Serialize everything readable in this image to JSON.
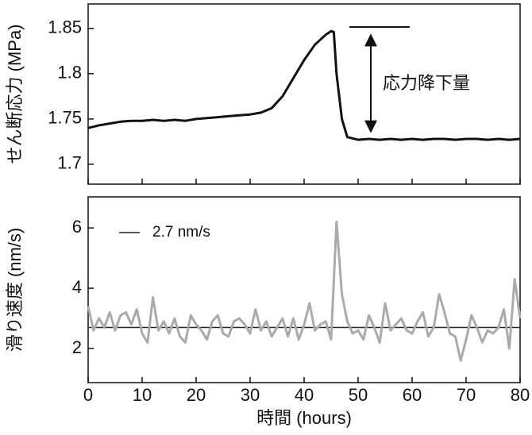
{
  "chart_data": [
    {
      "type": "line",
      "ylabel": "せん断応力 (MPa)",
      "annotation": "応力降下量",
      "xlim": [
        0,
        80
      ],
      "xticks": [
        0,
        10,
        20,
        30,
        40,
        50,
        60,
        70,
        80
      ],
      "ylim": [
        1.678,
        1.877
      ],
      "yticks": [
        1.7,
        1.75,
        1.8,
        1.85
      ],
      "x": [
        0,
        2,
        4,
        6,
        8,
        10,
        12,
        14,
        16,
        18,
        20,
        22,
        24,
        26,
        28,
        30,
        32,
        34,
        36,
        38,
        40,
        42,
        44,
        45,
        45.5,
        46,
        47,
        48,
        50,
        52,
        54,
        56,
        58,
        60,
        62,
        64,
        66,
        68,
        70,
        72,
        74,
        76,
        78,
        80
      ],
      "series": [
        {
          "color": "#111111",
          "values": [
            1.74,
            1.743,
            1.745,
            1.747,
            1.748,
            1.748,
            1.749,
            1.748,
            1.749,
            1.748,
            1.75,
            1.751,
            1.752,
            1.753,
            1.754,
            1.755,
            1.757,
            1.762,
            1.775,
            1.795,
            1.815,
            1.832,
            1.843,
            1.847,
            1.846,
            1.8,
            1.75,
            1.73,
            1.727,
            1.728,
            1.727,
            1.728,
            1.727,
            1.728,
            1.727,
            1.728,
            1.728,
            1.727,
            1.728,
            1.728,
            1.727,
            1.728,
            1.727,
            1.728
          ]
        }
      ]
    },
    {
      "type": "line",
      "ylabel": "滑り速度 (nm/s)",
      "xlabel": "時間 (hours)",
      "xlim": [
        0,
        80
      ],
      "xticks": [
        0,
        10,
        20,
        30,
        40,
        50,
        60,
        70,
        80
      ],
      "ylim": [
        0.87,
        7.03
      ],
      "yticks": [
        2,
        4,
        6
      ],
      "reference_line": {
        "value": 2.7,
        "label": "2.7 nm/s",
        "color": "#222222"
      },
      "x": [
        0,
        1,
        2,
        3,
        4,
        5,
        6,
        7,
        8,
        9,
        10,
        11,
        12,
        13,
        14,
        15,
        16,
        17,
        18,
        19,
        20,
        21,
        22,
        23,
        24,
        25,
        26,
        27,
        28,
        29,
        30,
        31,
        32,
        33,
        34,
        35,
        36,
        37,
        38,
        39,
        40,
        41,
        42,
        43,
        44,
        45,
        46,
        47,
        48,
        49,
        50,
        51,
        52,
        53,
        54,
        55,
        56,
        57,
        58,
        59,
        60,
        61,
        62,
        63,
        64,
        65,
        66,
        67,
        68,
        69,
        70,
        71,
        72,
        73,
        74,
        75,
        76,
        77,
        78,
        79,
        80
      ],
      "series": [
        {
          "color": "#aaaaaa",
          "values": [
            3.4,
            2.6,
            3.0,
            2.7,
            3.2,
            2.6,
            3.1,
            3.2,
            2.8,
            3.3,
            2.5,
            2.2,
            3.7,
            2.6,
            2.9,
            2.5,
            3.0,
            2.4,
            2.2,
            3.1,
            2.8,
            2.6,
            2.3,
            2.9,
            3.1,
            2.5,
            2.4,
            2.9,
            3.0,
            2.8,
            2.5,
            3.3,
            2.6,
            2.9,
            2.4,
            2.7,
            3.0,
            2.4,
            3.0,
            2.3,
            2.8,
            3.5,
            2.6,
            2.8,
            2.9,
            2.3,
            6.2,
            3.8,
            2.9,
            2.5,
            2.6,
            2.3,
            3.1,
            2.7,
            2.2,
            3.5,
            2.6,
            2.8,
            3.0,
            2.6,
            2.5,
            2.9,
            3.2,
            2.4,
            2.7,
            3.8,
            3.2,
            2.5,
            2.4,
            1.6,
            2.3,
            3.1,
            2.7,
            2.2,
            2.6,
            2.5,
            2.7,
            3.3,
            2.0,
            4.3,
            3.0
          ]
        }
      ]
    }
  ]
}
